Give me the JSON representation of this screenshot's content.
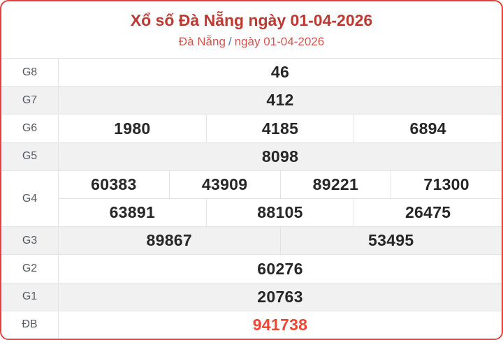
{
  "header": {
    "title": "Xổ số Đà Nẵng ngày 01-04-2026",
    "subtitle_location": "Đà Nẵng",
    "subtitle_separator": "/",
    "subtitle_date": "ngày 01-04-2026"
  },
  "colors": {
    "card_border": "#e3413a",
    "title_text": "#bc3a32",
    "subtitle_text": "#d6534e",
    "subtitle_slash": "#4a7ab7",
    "special_prize_text": "#f04532",
    "shaded_row_bg": "#f1f1f2",
    "grid_lines": "#e4e4e6",
    "label_text": "#55585e",
    "value_text": "#262626"
  },
  "table": {
    "rows": [
      {
        "key": "g8",
        "label": "G8",
        "shaded": false,
        "highlight": false,
        "lines": [
          [
            "46"
          ]
        ]
      },
      {
        "key": "g7",
        "label": "G7",
        "shaded": true,
        "highlight": false,
        "lines": [
          [
            "412"
          ]
        ]
      },
      {
        "key": "g6",
        "label": "G6",
        "shaded": false,
        "highlight": false,
        "lines": [
          [
            "1980",
            "4185",
            "6894"
          ]
        ]
      },
      {
        "key": "g5",
        "label": "G5",
        "shaded": true,
        "highlight": false,
        "lines": [
          [
            "8098"
          ]
        ]
      },
      {
        "key": "g4",
        "label": "G4",
        "shaded": false,
        "highlight": false,
        "lines": [
          [
            "60383",
            "43909",
            "89221",
            "71300"
          ],
          [
            "63891",
            "88105",
            "26475"
          ]
        ]
      },
      {
        "key": "g3",
        "label": "G3",
        "shaded": true,
        "highlight": false,
        "lines": [
          [
            "89867",
            "53495"
          ]
        ]
      },
      {
        "key": "g2",
        "label": "G2",
        "shaded": false,
        "highlight": false,
        "lines": [
          [
            "60276"
          ]
        ]
      },
      {
        "key": "g1",
        "label": "G1",
        "shaded": true,
        "highlight": false,
        "lines": [
          [
            "20763"
          ]
        ]
      },
      {
        "key": "db",
        "label": "ĐB",
        "shaded": false,
        "highlight": true,
        "lines": [
          [
            "941738"
          ]
        ]
      }
    ]
  }
}
